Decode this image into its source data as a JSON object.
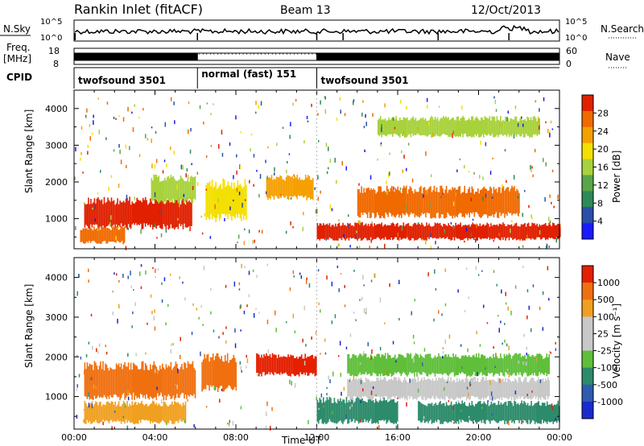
{
  "header": {
    "title": "Rankin Inlet (fitACF)",
    "beam": "Beam 13",
    "date": "12/Oct/2013"
  },
  "top_panels": {
    "nsky_label": "N.Sky",
    "nsky_ticks": [
      "10^5",
      "10^0"
    ],
    "nsearch_label": "N.Search",
    "freq_label": "Freq.",
    "freq_unit": "[MHz]",
    "freq_ticks": [
      "18",
      "8"
    ],
    "nave_label": "Nave",
    "nave_ticks": [
      "60",
      "0"
    ],
    "cpid_label": "CPID",
    "cpid_segments": [
      {
        "name": "twofsound 3501",
        "start_h": 0,
        "end_h": 6.1
      },
      {
        "name": "normal (fast) 151",
        "start_h": 6.1,
        "end_h": 12.0
      },
      {
        "name": "twofsound 3501",
        "start_h": 12.0,
        "end_h": 24
      }
    ]
  },
  "colors": {
    "power_scale": [
      "#1a1aff",
      "#2850a8",
      "#2e8a57",
      "#5aa54a",
      "#a8d23c",
      "#f4e000",
      "#f6a000",
      "#f06a00",
      "#e02000"
    ],
    "velocity_scale": [
      "#1a2ad0",
      "#2f5bb0",
      "#2c8b6a",
      "#5fbf3a",
      "#c8c8c8",
      "#c8c8c8",
      "#f0a020",
      "#f07010",
      "#e42000"
    ]
  },
  "chart_data": [
    {
      "type": "heatmap",
      "panel": "power",
      "xlabel": "",
      "ylabel": "Slant Range [km]",
      "xlim": [
        0,
        24
      ],
      "ylim": [
        180,
        4500
      ],
      "x_ticks": [
        "00:00",
        "04:00",
        "08:00",
        "12:00",
        "16:00",
        "20:00",
        "00:00"
      ],
      "y_ticks": [
        1000,
        2000,
        3000,
        4000
      ],
      "colorbar_label": "Power [dB]",
      "colorbar_ticks": [
        "28",
        "24",
        "20",
        "16",
        "12",
        "8",
        "4"
      ],
      "regions": [
        {
          "t0": 0.5,
          "t1": 5.8,
          "r0": 700,
          "r1": 1600,
          "level": 28
        },
        {
          "t0": 0.3,
          "t1": 2.5,
          "r0": 300,
          "r1": 800,
          "level": 24
        },
        {
          "t0": 3.8,
          "t1": 6.0,
          "r0": 1400,
          "r1": 2200,
          "level": 12
        },
        {
          "t0": 6.5,
          "t1": 8.5,
          "r0": 900,
          "r1": 2100,
          "level": 16
        },
        {
          "t0": 9.5,
          "t1": 11.8,
          "r0": 1500,
          "r1": 2200,
          "level": 20
        },
        {
          "t0": 12.0,
          "t1": 24.0,
          "r0": 400,
          "r1": 900,
          "level": 28
        },
        {
          "t0": 14.0,
          "t1": 22.0,
          "r0": 1000,
          "r1": 1900,
          "level": 24
        },
        {
          "t0": 15.0,
          "t1": 23.0,
          "r0": 3200,
          "r1": 3800,
          "level": 12
        }
      ]
    },
    {
      "type": "heatmap",
      "panel": "velocity",
      "xlabel": "Time UT",
      "ylabel": "Slant Range [km]",
      "xlim": [
        0,
        24
      ],
      "ylim": [
        180,
        4500
      ],
      "x_ticks": [
        "00:00",
        "04:00",
        "08:00",
        "12:00",
        "16:00",
        "20:00",
        "00:00"
      ],
      "y_ticks": [
        1000,
        2000,
        3000,
        4000
      ],
      "colorbar_label": "Velocity [m s⁻¹]",
      "colorbar_ticks": [
        "1000",
        "500",
        "100",
        "25",
        "-25",
        "-100",
        "-500",
        "-1000"
      ],
      "regions": [
        {
          "t0": 0.5,
          "t1": 6.0,
          "r0": 900,
          "r1": 1900,
          "level": 500
        },
        {
          "t0": 0.5,
          "t1": 5.5,
          "r0": 300,
          "r1": 900,
          "level": 100
        },
        {
          "t0": 6.3,
          "t1": 8.0,
          "r0": 1100,
          "r1": 2100,
          "level": 500
        },
        {
          "t0": 9.0,
          "t1": 12.0,
          "r0": 1500,
          "r1": 2100,
          "level": 1000
        },
        {
          "t0": 12.0,
          "t1": 16.0,
          "r0": 300,
          "r1": 1000,
          "level": -500
        },
        {
          "t0": 13.5,
          "t1": 23.5,
          "r0": 1500,
          "r1": 2100,
          "level": -100
        },
        {
          "t0": 13.5,
          "t1": 23.5,
          "r0": 900,
          "r1": 1500,
          "level": 25
        },
        {
          "t0": 17.0,
          "t1": 24.0,
          "r0": 300,
          "r1": 900,
          "level": -500
        }
      ]
    }
  ]
}
